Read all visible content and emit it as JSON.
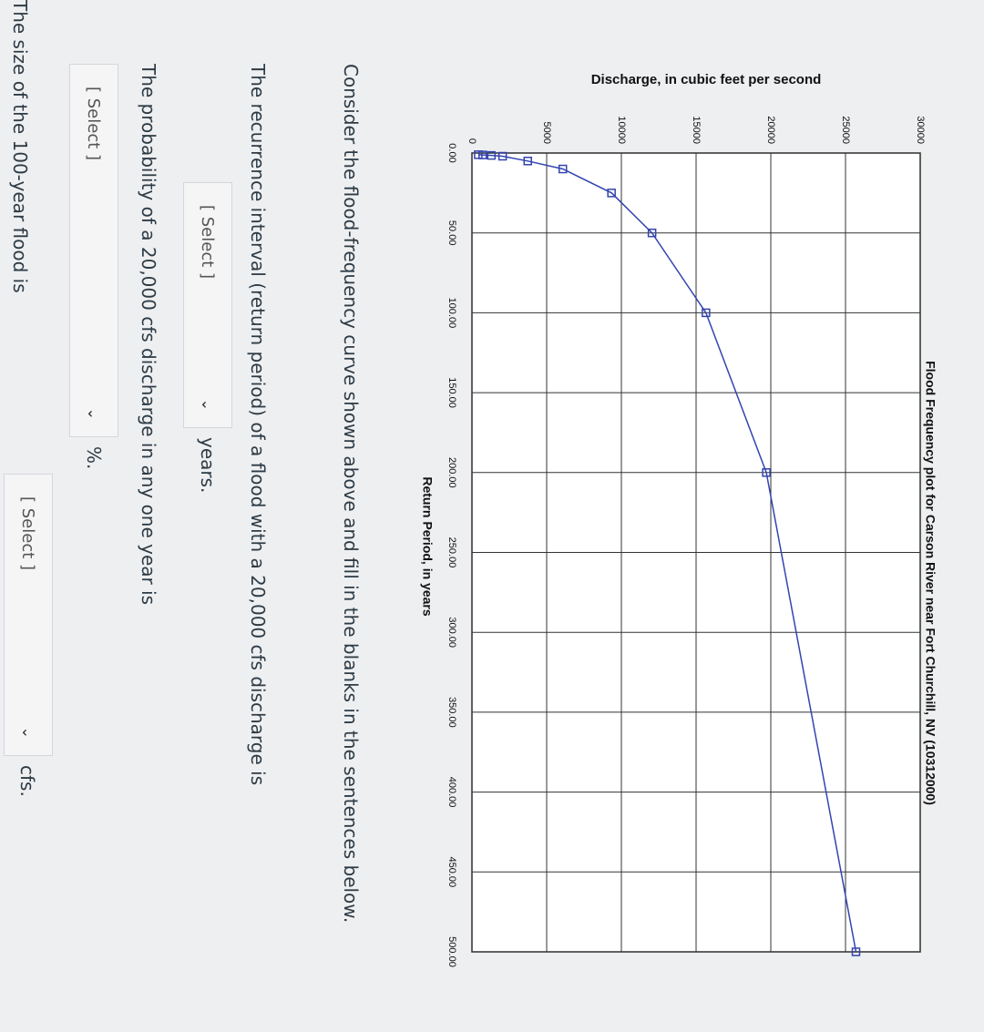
{
  "chart_data": {
    "type": "line",
    "title": "Flood Frequency plot for Carson River near Fort Churchill, NV (10312000)",
    "x_label": "Return Period, in years",
    "y_label": "Discharge, in cubic feet per second",
    "x": [
      1.05,
      1.2,
      1.5,
      2,
      5,
      10,
      25,
      50,
      100,
      200,
      500
    ],
    "series": [
      {
        "color": "#3344b0",
        "values": [
          420,
          720,
          1300,
          2050,
          3735,
          6080,
          9340,
          12050,
          15660,
          19700,
          25700
        ]
      }
    ],
    "xlim": [
      0,
      500
    ],
    "ylim": [
      0,
      30000
    ],
    "xticks": [
      {
        "value": 0,
        "label": "0.00"
      },
      {
        "value": 50,
        "label": "50.00"
      },
      {
        "value": 100,
        "label": "100.00"
      },
      {
        "value": 150,
        "label": "150.00"
      },
      {
        "value": 200,
        "label": "200.00"
      },
      {
        "value": 250,
        "label": "250.00"
      },
      {
        "value": 300,
        "label": "300.00"
      },
      {
        "value": 350,
        "label": "350.00"
      },
      {
        "value": 400,
        "label": "400.00"
      },
      {
        "value": 450,
        "label": "450.00"
      },
      {
        "value": 500,
        "label": "500.00"
      }
    ],
    "yticks": [
      0,
      5000,
      10000,
      15000,
      20000,
      25000,
      30000
    ],
    "grid": true
  },
  "questions": {
    "intro": "Consider the flood-frequency curve shown above and fill in the blanks in the sentences below.",
    "items": [
      {
        "prompt": "The recurrence interval (return period) of a flood with a 20,000 cfs discharge is",
        "select": "[ Select ]",
        "unit": "years."
      },
      {
        "prompt": "The probability of a 20,000 cfs discharge in any one year is",
        "select": "[ Select ]",
        "unit": "%."
      },
      {
        "prompt": "The size of the 100-year flood is",
        "select": "[ Select ]",
        "unit": "cfs."
      }
    ]
  }
}
